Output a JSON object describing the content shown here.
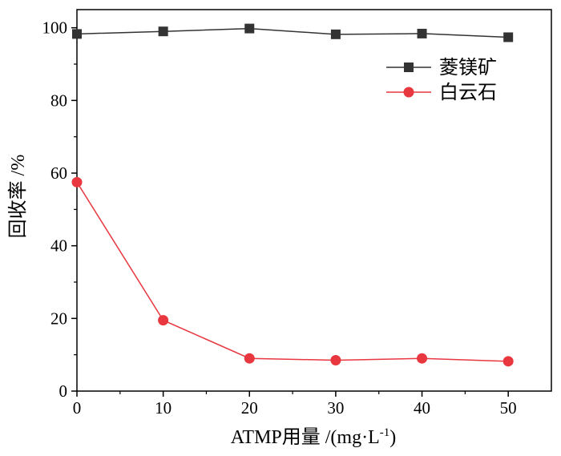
{
  "chart_data": {
    "type": "line",
    "title": "",
    "xlabel": "ATMP用量 /(mg·L",
    "xlabel_sup": "-1",
    "xlabel_close": ")",
    "ylabel": "回收率 /%",
    "xlim": [
      0,
      55
    ],
    "ylim": [
      0,
      105
    ],
    "x_ticks": [
      0,
      10,
      20,
      30,
      40,
      50
    ],
    "y_ticks": [
      0,
      20,
      40,
      60,
      80,
      100
    ],
    "x_tick_labels": [
      "0",
      "10",
      "20",
      "30",
      "40",
      "50"
    ],
    "y_tick_labels": [
      "0",
      "20",
      "40",
      "60",
      "80",
      "100"
    ],
    "x": [
      0,
      10,
      20,
      30,
      40,
      50
    ],
    "grid": false,
    "legend_position": "top-right",
    "series": [
      {
        "name": "菱镁矿",
        "marker": "square",
        "color": "#333333",
        "values": [
          98.3,
          99.0,
          99.8,
          98.2,
          98.4,
          97.4
        ]
      },
      {
        "name": "白云石",
        "marker": "circle",
        "color": "#e8373f",
        "values": [
          57.5,
          19.5,
          9.0,
          8.5,
          9.0,
          8.2
        ]
      }
    ]
  }
}
